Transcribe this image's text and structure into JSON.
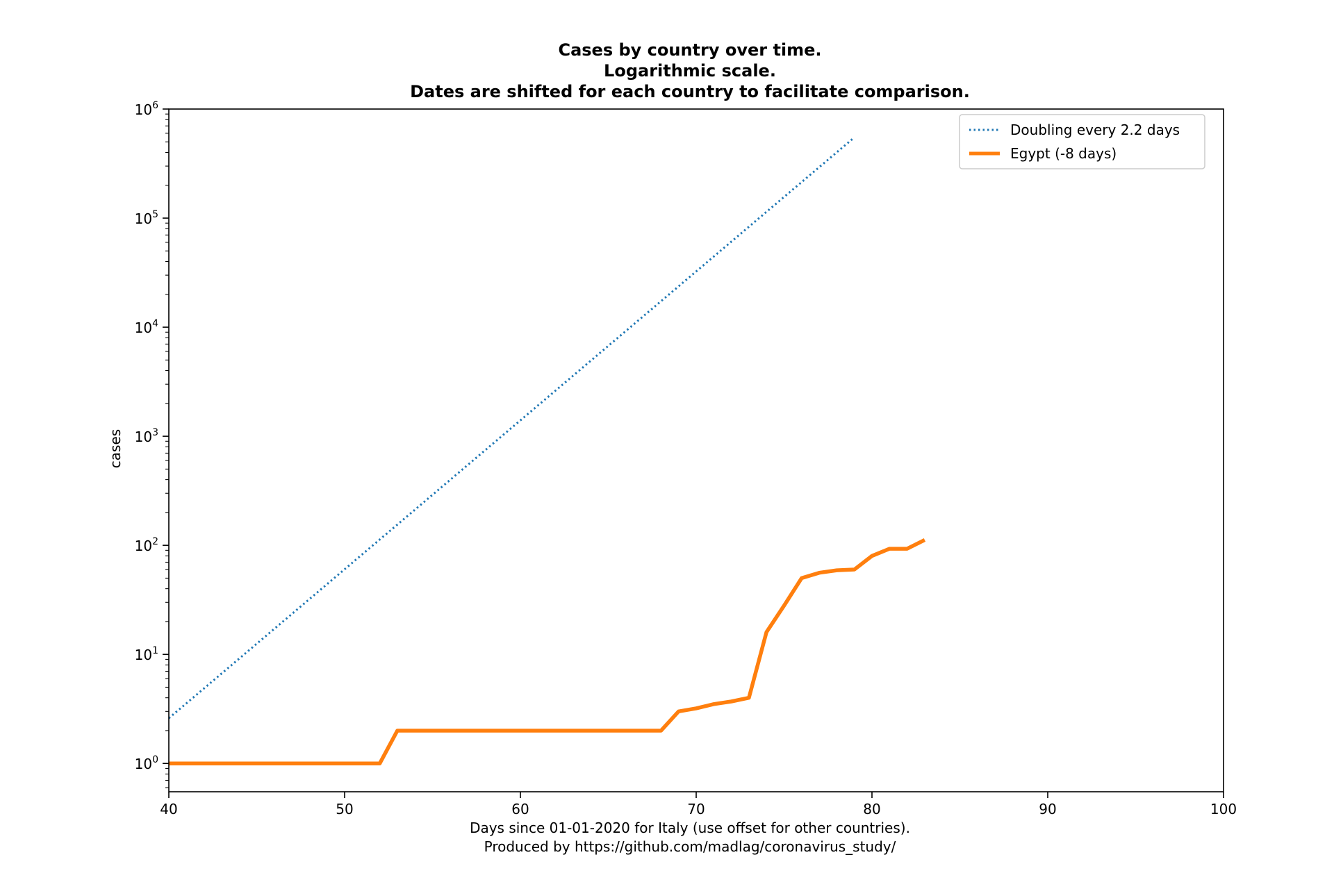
{
  "chart_data": {
    "type": "line",
    "title_lines": [
      "Cases by country over time.",
      "Logarithmic scale.",
      "Dates are shifted for each country to facilitate comparison."
    ],
    "xlabel_lines": [
      "Days since 01-01-2020 for Italy (use offset for other countries).",
      "Produced by https://github.com/madlag/coronavirus_study/"
    ],
    "ylabel": "cases",
    "xlim": [
      40,
      100
    ],
    "ylim": [
      0.55,
      1000000
    ],
    "yscale": "log",
    "x_ticks": [
      40,
      50,
      60,
      70,
      80,
      90,
      100
    ],
    "y_tick_exponents": [
      0,
      1,
      2,
      3,
      4,
      5,
      6
    ],
    "grid": false,
    "legend_position": "top-right",
    "series": [
      {
        "name": "Doubling every 2.2 days",
        "style": "dotted",
        "color": "#1f77b4",
        "x": [
          40,
          79
        ],
        "y": [
          2.6,
          550000
        ]
      },
      {
        "name": "Egypt (-8 days)",
        "style": "solid",
        "color": "#ff7f0e",
        "x": [
          40,
          41,
          42,
          43,
          44,
          45,
          46,
          47,
          48,
          49,
          50,
          51,
          52,
          53,
          54,
          55,
          56,
          57,
          58,
          59,
          60,
          61,
          62,
          63,
          64,
          65,
          66,
          67,
          68,
          69,
          70,
          71,
          72,
          73,
          74,
          75,
          76,
          77,
          78,
          79,
          80,
          81,
          82,
          83
        ],
        "y": [
          1,
          1,
          1,
          1,
          1,
          1,
          1,
          1,
          1,
          1,
          1,
          1,
          1,
          2,
          2,
          2,
          2,
          2,
          2,
          2,
          2,
          2,
          2,
          2,
          2,
          2,
          2,
          2,
          2,
          3,
          3.2,
          3.5,
          3.7,
          4,
          16,
          28,
          50,
          56,
          59,
          60,
          80,
          93,
          93,
          112
        ]
      }
    ]
  }
}
